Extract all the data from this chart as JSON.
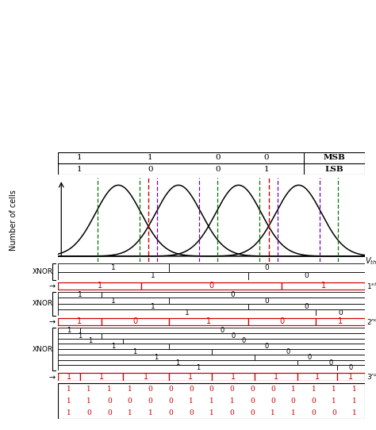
{
  "gaussian_means": [
    1.0,
    2.0,
    3.0,
    4.0
  ],
  "gaussian_sigma": 0.38,
  "dashed_lines": {
    "green": [
      0.65,
      1.35,
      2.65,
      3.35,
      4.65
    ],
    "red": [
      1.5,
      3.5
    ],
    "purple": [
      1.65,
      2.35,
      3.65,
      4.35
    ]
  },
  "table_data": [
    [
      "1",
      "1",
      "0",
      "0",
      "MSB"
    ],
    [
      "1",
      "0",
      "0",
      "1",
      "LSB"
    ]
  ],
  "bit1_row": [
    "1",
    "0",
    "1"
  ],
  "bit2_row": [
    "1",
    "0",
    "1",
    "0",
    "1"
  ],
  "bit3_row": [
    "1",
    "1",
    "1",
    "1",
    "1",
    "1",
    "1",
    "1"
  ],
  "xnor1_rows": [
    [
      [
        0.0,
        0.36,
        "1"
      ],
      [
        0.36,
        1.0,
        "0"
      ]
    ],
    [
      [
        0.0,
        0.62,
        "1"
      ],
      [
        0.62,
        1.0,
        "0"
      ]
    ]
  ],
  "xnor2_rows": [
    [
      [
        0.0,
        0.14,
        "1"
      ],
      [
        0.14,
        1.0,
        "0"
      ]
    ],
    [
      [
        0.0,
        0.36,
        "1"
      ],
      [
        0.36,
        1.0,
        "0"
      ]
    ],
    [
      [
        0.0,
        0.62,
        "1"
      ],
      [
        0.62,
        1.0,
        "0"
      ]
    ],
    [
      [
        0.0,
        0.84,
        "1"
      ],
      [
        0.84,
        1.0,
        "0"
      ]
    ]
  ],
  "xnor3_rows": [
    [
      [
        0.0,
        0.07,
        "1"
      ],
      [
        0.07,
        1.0,
        "0"
      ]
    ],
    [
      [
        0.0,
        0.14,
        "1"
      ],
      [
        0.14,
        1.0,
        "0"
      ]
    ],
    [
      [
        0.0,
        0.21,
        "1"
      ],
      [
        0.21,
        1.0,
        "0"
      ]
    ],
    [
      [
        0.0,
        0.36,
        "1"
      ],
      [
        0.36,
        1.0,
        "0"
      ]
    ],
    [
      [
        0.0,
        0.5,
        "1"
      ],
      [
        0.5,
        1.0,
        "0"
      ]
    ],
    [
      [
        0.0,
        0.64,
        "1"
      ],
      [
        0.64,
        1.0,
        "0"
      ]
    ],
    [
      [
        0.0,
        0.78,
        "1"
      ],
      [
        0.78,
        1.0,
        "0"
      ]
    ],
    [
      [
        0.0,
        0.91,
        "1"
      ],
      [
        0.91,
        1.0,
        "0"
      ]
    ]
  ],
  "bit1_divs": [
    0.0,
    0.27,
    0.73,
    1.0
  ],
  "bit2_divs": [
    0.0,
    0.14,
    0.36,
    0.62,
    0.84,
    1.0
  ],
  "bit3_divs": [
    0.0,
    0.07,
    0.21,
    0.36,
    0.5,
    0.64,
    0.78,
    0.91,
    1.0
  ],
  "bottom_bits": [
    [
      "1",
      "1",
      "1",
      "1",
      "0",
      "0",
      "0",
      "0",
      "0",
      "0",
      "0",
      "1",
      "1",
      "1",
      "1"
    ],
    [
      "1",
      "1",
      "0",
      "0",
      "0",
      "0",
      "1",
      "1",
      "1",
      "0",
      "0",
      "0",
      "0",
      "1",
      "1"
    ],
    [
      "1",
      "0",
      "0",
      "1",
      "1",
      "0",
      "0",
      "1",
      "0",
      "0",
      "1",
      "1",
      "0",
      "0",
      "1"
    ]
  ],
  "red_color": "#cc0000",
  "green_color": "#007700",
  "purple_color": "#7700bb",
  "black_color": "#000000"
}
